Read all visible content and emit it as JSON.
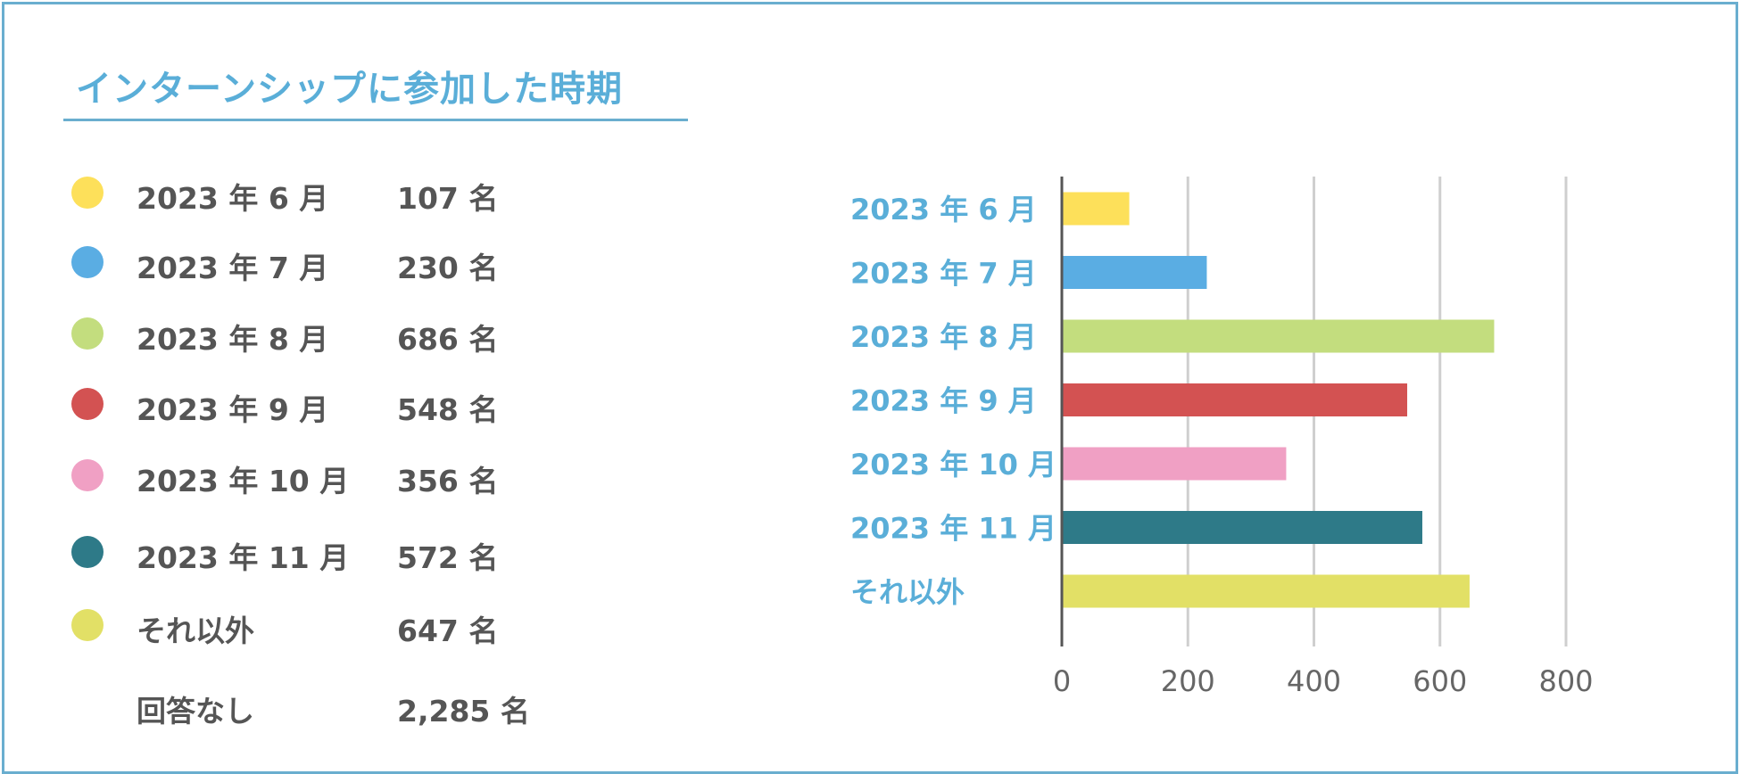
{
  "title": "インターンシップに参加した時期",
  "legend": [
    {
      "label": "2023 年 6 月",
      "count": "107 名",
      "color": "#fde05a"
    },
    {
      "label": "2023 年 7 月",
      "count": "230 名",
      "color": "#5aade3"
    },
    {
      "label": "2023 年 8 月",
      "count": "686 名",
      "color": "#c3dd7e"
    },
    {
      "label": "2023 年 9 月",
      "count": "548 名",
      "color": "#d35252"
    },
    {
      "label": "2023 年 10 月",
      "count": "356 名",
      "color": "#f0a0c4"
    },
    {
      "label": "2023 年 11 月",
      "count": "572 名",
      "color": "#2e7a88"
    },
    {
      "label": "それ以外",
      "count": "647 名",
      "color": "#e2e066"
    }
  ],
  "no_answer": {
    "label": "回答なし",
    "count": "2,285 名"
  },
  "chart_data": {
    "type": "bar",
    "orientation": "horizontal",
    "categories": [
      "2023 年 6 月",
      "2023 年 7 月",
      "2023 年 8 月",
      "2023 年 9 月",
      "2023 年 10 月",
      "2023 年 11 月",
      "それ以外"
    ],
    "values": [
      107,
      230,
      686,
      548,
      356,
      572,
      647
    ],
    "colors": [
      "#fde05a",
      "#5aade3",
      "#c3dd7e",
      "#d35252",
      "#f0a0c4",
      "#2e7a88",
      "#e2e066"
    ],
    "xlim": [
      0,
      800
    ],
    "xticks": [
      0,
      200,
      400,
      600,
      800
    ],
    "grid": true
  }
}
